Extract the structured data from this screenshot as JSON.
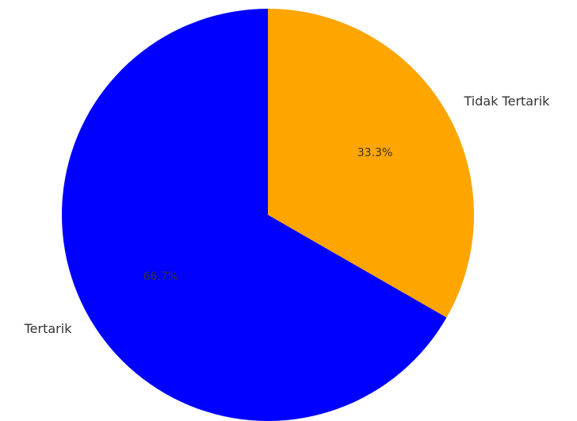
{
  "chart_data": {
    "type": "pie",
    "categories": [
      "Tidak Tertarik",
      "Tertarik"
    ],
    "values": [
      33.3,
      66.7
    ],
    "data_labels": [
      "33.3%",
      "66.7%"
    ],
    "colors": [
      "#FFA500",
      "#0000FF"
    ],
    "start_angle_deg": 90,
    "direction": "clockwise"
  }
}
